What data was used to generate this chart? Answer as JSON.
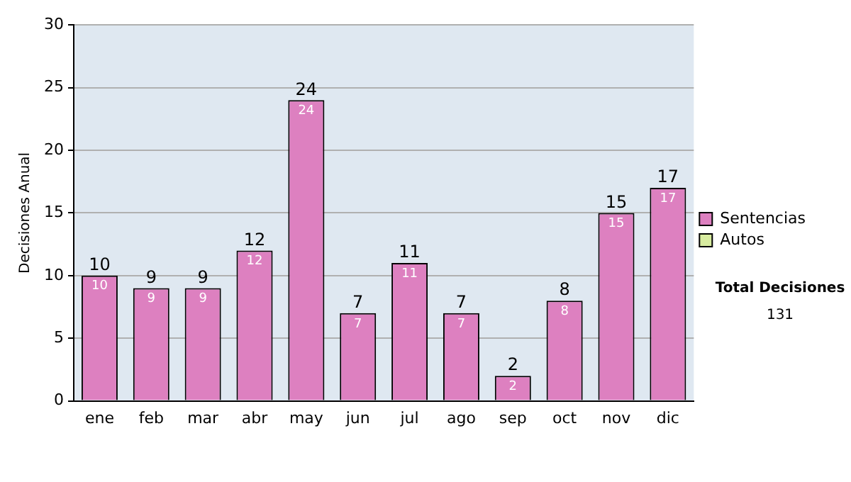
{
  "chart_data": {
    "type": "bar",
    "ylabel": "Decisiones Anual",
    "categories": [
      "ene",
      "feb",
      "mar",
      "abr",
      "may",
      "jun",
      "jul",
      "ago",
      "sep",
      "oct",
      "nov",
      "dic"
    ],
    "series": [
      {
        "name": "Sentencias",
        "color": "#dd80c0",
        "values": [
          10,
          9,
          9,
          12,
          24,
          7,
          11,
          7,
          2,
          8,
          15,
          17
        ],
        "value_labels": [
          "10",
          "9",
          "9",
          "12",
          "24",
          "7",
          "11",
          "7",
          "2",
          "8",
          "15",
          "17"
        ]
      },
      {
        "name": "Autos",
        "color": "#d8eca0",
        "values": [
          0,
          0,
          0,
          0,
          0,
          0,
          0,
          0,
          0,
          0,
          0,
          0
        ]
      }
    ],
    "stacked": true,
    "totals": [
      "10",
      "9",
      "9",
      "12",
      "24",
      "7",
      "11",
      "7",
      "2",
      "8",
      "15",
      "17"
    ],
    "ylim": [
      0,
      30
    ],
    "yticks": [
      0,
      5,
      10,
      15,
      20,
      25,
      30
    ],
    "grid": "y",
    "legend": "right",
    "annotations": [
      "Total Decisiones",
      "131"
    ]
  }
}
